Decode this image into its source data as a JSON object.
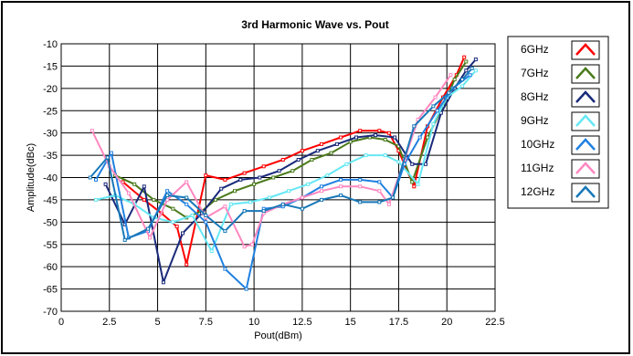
{
  "chart_data": {
    "type": "line",
    "title": "3rd Harmonic Wave vs. Pout",
    "xlabel": "Pout(dBm)",
    "ylabel": "Amplitude(dBc)",
    "xlim": [
      0,
      22.5
    ],
    "ylim": [
      -70,
      -10
    ],
    "xticks": [
      "0",
      "2.5",
      "5",
      "7.5",
      "10",
      "12.5",
      "15",
      "17.5",
      "20",
      "22.5"
    ],
    "yticks": [
      "-10",
      "-15",
      "-20",
      "-25",
      "-30",
      "-35",
      "-40",
      "-45",
      "-50",
      "-55",
      "-60",
      "-65",
      "-70"
    ],
    "grid": true,
    "legend_position": "right",
    "series": [
      {
        "name": "6GHz",
        "color": "#ff0000",
        "x": [
          3.2,
          4.3,
          5.2,
          6.0,
          6.5,
          7.5,
          8.5,
          9.5,
          10.5,
          11.5,
          12.5,
          13.5,
          14.5,
          15.5,
          16.5,
          17.0,
          17.5,
          18.3,
          19.0,
          19.8,
          20.5,
          20.9
        ],
        "y": [
          -41,
          -45,
          -48,
          -51,
          -59.5,
          -39.5,
          -40.5,
          -39,
          -37.5,
          -36,
          -34,
          -32.5,
          -31,
          -29.5,
          -29.5,
          -30,
          -34,
          -42,
          -28.5,
          -22,
          -17,
          -13
        ]
      },
      {
        "name": "7GHz",
        "color": "#4a7a1a",
        "x": [
          2.8,
          3.8,
          4.8,
          5.8,
          6.5,
          7.3,
          8.0,
          9.0,
          10.0,
          11.0,
          12.0,
          13.0,
          14.0,
          15.0,
          16.0,
          16.8,
          17.5,
          18.2,
          19.0,
          19.8,
          20.4,
          21.0
        ],
        "y": [
          -39.5,
          -41.5,
          -45,
          -47,
          -49,
          -47.5,
          -45,
          -43,
          -41.5,
          -40,
          -38.5,
          -36,
          -34.5,
          -32,
          -31,
          -31.5,
          -33,
          -41,
          -31,
          -24,
          -18,
          -14
        ]
      },
      {
        "name": "8GHz",
        "color": "#1a2a7a",
        "x": [
          2.3,
          3.3,
          4.3,
          5.3,
          6.3,
          7.3,
          8.3,
          9.3,
          10.3,
          11.3,
          12.3,
          13.3,
          14.3,
          15.3,
          16.3,
          17.3,
          18.2,
          18.9,
          19.7,
          20.4,
          21.0,
          21.5
        ],
        "y": [
          -41.5,
          -50.5,
          -42,
          -63.5,
          -52.5,
          -48,
          -42.5,
          -40.5,
          -40,
          -38.5,
          -36,
          -34,
          -32.5,
          -31,
          -30.5,
          -31,
          -37,
          -37,
          -25.5,
          -20,
          -16,
          -13.5
        ]
      },
      {
        "name": "9GHz",
        "color": "#66e8f5",
        "x": [
          1.8,
          2.8,
          3.8,
          4.8,
          5.8,
          6.8,
          7.8,
          8.8,
          9.8,
          10.8,
          11.8,
          12.8,
          13.8,
          14.8,
          15.8,
          16.8,
          17.5,
          18.5,
          19.3,
          20.0,
          20.8,
          21.5
        ],
        "y": [
          -45,
          -44,
          -46,
          -49,
          -50,
          -48.5,
          -56.5,
          -46,
          -45.5,
          -44.5,
          -43,
          -41.5,
          -39.5,
          -37,
          -35,
          -35,
          -36.5,
          -41.5,
          -28,
          -22,
          -19.5,
          -16
        ]
      },
      {
        "name": "10GHz",
        "color": "#2080e0",
        "x": [
          1.8,
          2.6,
          3.5,
          4.5,
          5.5,
          6.5,
          7.5,
          8.5,
          9.6,
          10.5,
          11.5,
          12.5,
          13.5,
          14.5,
          15.5,
          16.5,
          17.2,
          17.8,
          18.6,
          19.5,
          20.3,
          21.2
        ],
        "y": [
          -40.5,
          -34.5,
          -53.5,
          -52,
          -43,
          -46,
          -50,
          -60.5,
          -65,
          -47,
          -46.5,
          -44.5,
          -42,
          -40.5,
          -40.5,
          -41,
          -44.5,
          -37,
          -31,
          -25,
          -20,
          -17
        ]
      },
      {
        "name": "11GHz",
        "color": "#ff88c0",
        "x": [
          1.6,
          2.5,
          3.5,
          4.6,
          5.5,
          6.5,
          7.5,
          8.5,
          9.5,
          9.9,
          10.5,
          11.5,
          12.5,
          13.5,
          14.5,
          15.5,
          16.5,
          17.0,
          17.8,
          18.5,
          19.4,
          20.2
        ],
        "y": [
          -29.5,
          -37.5,
          -43.5,
          -53.5,
          -45,
          -41,
          -49,
          -46.5,
          -55.5,
          -55,
          -48,
          -46,
          -44.5,
          -43,
          -42,
          -42,
          -43,
          -46,
          -36,
          -27,
          -22,
          -17
        ]
      },
      {
        "name": "12GHz",
        "color": "#1878b8",
        "x": [
          1.5,
          2.4,
          3.3,
          4.5,
          5.5,
          6.5,
          7.5,
          8.5,
          9.5,
          10.5,
          11.5,
          12.5,
          13.5,
          14.5,
          15.5,
          16.5,
          17.2,
          18.3,
          19.3,
          20.1,
          20.8,
          21.3
        ],
        "y": [
          -40,
          -35.5,
          -54,
          -51.5,
          -44,
          -44.5,
          -48.5,
          -52,
          -47.5,
          -47.5,
          -46,
          -47,
          -45,
          -44,
          -45.5,
          -45.5,
          -44.5,
          -28.5,
          -24,
          -21,
          -18,
          -15.5
        ]
      }
    ]
  }
}
